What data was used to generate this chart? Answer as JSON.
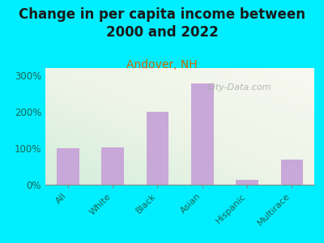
{
  "title": "Change in per capita income between\n2000 and 2022",
  "subtitle": "Andover, NH",
  "categories": [
    "All",
    "White",
    "Black",
    "Asian",
    "Hispanic",
    "Multirace"
  ],
  "values": [
    100,
    103,
    200,
    278,
    13,
    68
  ],
  "bar_color": "#c8a8d8",
  "title_fontsize": 12,
  "title_color": "#1a1a1a",
  "subtitle_color": "#cc6600",
  "subtitle_fontsize": 10,
  "ylabel_ticks": [
    "0%",
    "100%",
    "200%",
    "300%"
  ],
  "yticks": [
    0,
    100,
    200,
    300
  ],
  "ylim": [
    0,
    320
  ],
  "background_outer": "#00eeff",
  "watermark": "City-Data.com",
  "tick_label_color": "#1a6655",
  "axis_color": "#888888"
}
